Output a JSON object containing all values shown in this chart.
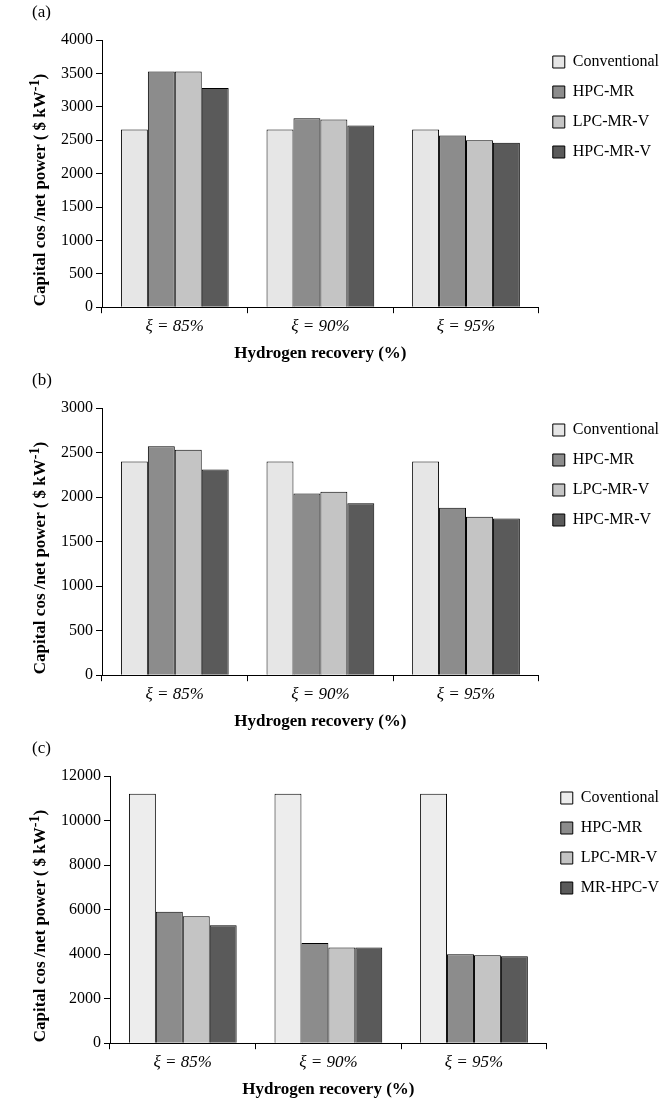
{
  "chart_data": [
    {
      "type": "bar",
      "title": "(a)",
      "xlabel": "Hydrogen recovery (%)",
      "ylabel": "Capital cos /net power ( $ kW$^{-1}$)",
      "categories": [
        "ξ = 85%",
        "ξ = 90%",
        "ξ = 95%"
      ],
      "series": [
        {
          "name": "Conventional",
          "color": "#e6e6e6",
          "values": [
            2660,
            2660,
            2660
          ]
        },
        {
          "name": "HPC-MR",
          "color": "#8c8c8c",
          "values": [
            3530,
            2830,
            2570
          ]
        },
        {
          "name": "LPC-MR-V",
          "color": "#c4c4c4",
          "values": [
            3530,
            2810,
            2500
          ]
        },
        {
          "name": "HPC-MR-V",
          "color": "#5a5a5a",
          "values": [
            3280,
            2720,
            2460
          ]
        }
      ],
      "ylim": [
        0,
        4000
      ],
      "yticks": [
        0,
        500,
        1000,
        1500,
        2000,
        2500,
        3000,
        3500,
        4000
      ],
      "grid": false,
      "legend": "top right"
    },
    {
      "type": "bar",
      "title": "(b)",
      "xlabel": "Hydrogen recovery (%)",
      "ylabel": "Capital cos /net power ( $ kW$^{-1}$)",
      "categories": [
        "ξ = 85%",
        "ξ = 90%",
        "ξ = 95%"
      ],
      "series": [
        {
          "name": "Conventional",
          "color": "#e6e6e6",
          "values": [
            2400,
            2400,
            2400
          ]
        },
        {
          "name": "HPC-MR",
          "color": "#8c8c8c",
          "values": [
            2570,
            2040,
            1880
          ]
        },
        {
          "name": "LPC-MR-V",
          "color": "#c4c4c4",
          "values": [
            2530,
            2060,
            1780
          ]
        },
        {
          "name": "HPC-MR-V",
          "color": "#5a5a5a",
          "values": [
            2310,
            1930,
            1760
          ]
        }
      ],
      "ylim": [
        0,
        3000
      ],
      "yticks": [
        0,
        500,
        1000,
        1500,
        2000,
        2500,
        3000
      ],
      "grid": false,
      "legend": "top right"
    },
    {
      "type": "bar",
      "title": "(c)",
      "xlabel": "Hydrogen recovery (%)",
      "ylabel": "Capital cos /net power ( $ kW$^{-1}$)",
      "categories": [
        "ξ = 85%",
        "ξ = 90%",
        "ξ = 95%"
      ],
      "series": [
        {
          "name": "Coventional",
          "color": "#ededed",
          "values": [
            11200,
            11200,
            11200
          ]
        },
        {
          "name": "HPC-MR",
          "color": "#8c8c8c",
          "values": [
            5900,
            4500,
            4000
          ]
        },
        {
          "name": "LPC-MR-V",
          "color": "#c4c4c4",
          "values": [
            5700,
            4300,
            3950
          ]
        },
        {
          "name": "MR-HPC-V",
          "color": "#5a5a5a",
          "values": [
            5300,
            4300,
            3900
          ]
        }
      ],
      "ylim": [
        0,
        12000
      ],
      "yticks": [
        0,
        2000,
        4000,
        6000,
        8000,
        10000,
        12000
      ],
      "grid": false,
      "legend": "top right"
    }
  ]
}
